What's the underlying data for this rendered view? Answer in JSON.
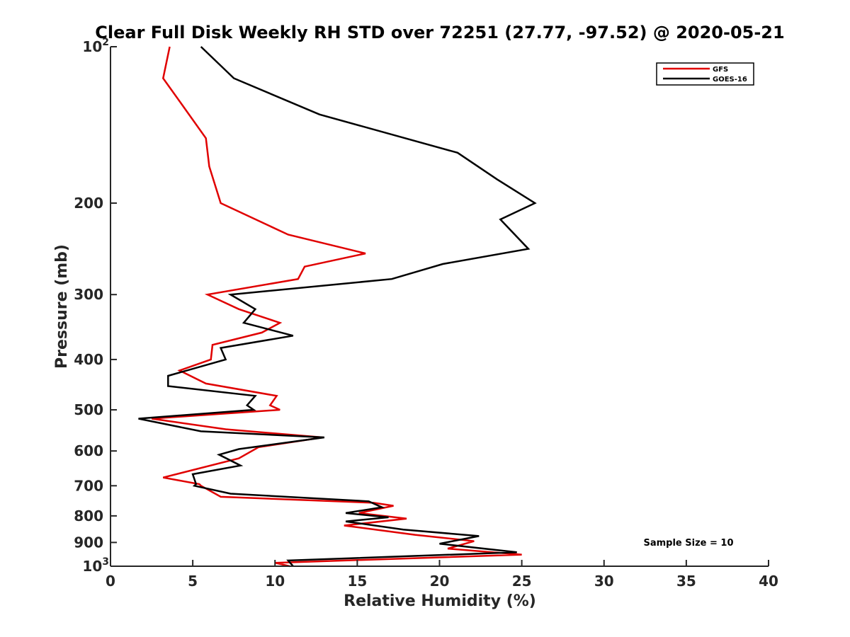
{
  "chart_data": {
    "type": "line",
    "title": "Clear Full Disk Weekly RH STD over 72251 (27.77, -97.52) @ 2020-05-21",
    "xlabel": "Relative Humidity (%)",
    "ylabel": "Pressure (mb)",
    "xlim": [
      0,
      40
    ],
    "ylim": [
      1000,
      100
    ],
    "y_scale": "log",
    "y_reversed": true,
    "x_ticks": [
      "0",
      "5",
      "10",
      "15",
      "20",
      "25",
      "30",
      "35",
      "40"
    ],
    "y_ticks": [
      {
        "value": 100,
        "base": "10",
        "exp": "2"
      },
      {
        "value": 200,
        "label": "200"
      },
      {
        "value": 300,
        "label": "300"
      },
      {
        "value": 400,
        "label": "400"
      },
      {
        "value": 500,
        "label": "500"
      },
      {
        "value": 600,
        "label": "600"
      },
      {
        "value": 700,
        "label": "700"
      },
      {
        "value": 800,
        "label": "800"
      },
      {
        "value": 900,
        "label": "900"
      },
      {
        "value": 1000,
        "base": "10",
        "exp": "3"
      }
    ],
    "grid": false,
    "legend_position": "top-right",
    "annotation": "Sample Size = 10",
    "series": [
      {
        "name": "GFS",
        "color": "#e00000",
        "points": [
          [
            3.6,
            100
          ],
          [
            3.2,
            115
          ],
          [
            4.4,
            130
          ],
          [
            5.8,
            150
          ],
          [
            6.0,
            170
          ],
          [
            6.7,
            200
          ],
          [
            10.8,
            230
          ],
          [
            15.5,
            250
          ],
          [
            11.8,
            265
          ],
          [
            11.4,
            280
          ],
          [
            5.9,
            300
          ],
          [
            7.8,
            320
          ],
          [
            10.3,
            340
          ],
          [
            9.2,
            355
          ],
          [
            6.2,
            375
          ],
          [
            6.1,
            400
          ],
          [
            4.2,
            420
          ],
          [
            5.8,
            445
          ],
          [
            10.1,
            470
          ],
          [
            9.7,
            490
          ],
          [
            10.3,
            500
          ],
          [
            2.5,
            520
          ],
          [
            7.0,
            545
          ],
          [
            12.9,
            565
          ],
          [
            9.0,
            590
          ],
          [
            7.8,
            620
          ],
          [
            3.2,
            675
          ],
          [
            5.4,
            695
          ],
          [
            5.5,
            700
          ],
          [
            6.7,
            735
          ],
          [
            16.0,
            755
          ],
          [
            17.2,
            765
          ],
          [
            15.1,
            790
          ],
          [
            18.0,
            810
          ],
          [
            14.2,
            835
          ],
          [
            18.5,
            870
          ],
          [
            22.1,
            895
          ],
          [
            20.5,
            925
          ],
          [
            25.0,
            950
          ],
          [
            10.0,
            985
          ],
          [
            10.9,
            1000
          ]
        ]
      },
      {
        "name": "GOES-16",
        "color": "#000000",
        "points": [
          [
            5.5,
            100
          ],
          [
            7.5,
            115
          ],
          [
            12.7,
            135
          ],
          [
            21.1,
            160
          ],
          [
            23.5,
            180
          ],
          [
            25.8,
            200
          ],
          [
            23.7,
            215
          ],
          [
            25.4,
            245
          ],
          [
            20.2,
            262
          ],
          [
            17.1,
            280
          ],
          [
            7.3,
            300
          ],
          [
            8.8,
            320
          ],
          [
            8.1,
            340
          ],
          [
            11.1,
            360
          ],
          [
            6.7,
            380
          ],
          [
            7.0,
            400
          ],
          [
            3.5,
            430
          ],
          [
            3.5,
            450
          ],
          [
            8.8,
            470
          ],
          [
            8.3,
            490
          ],
          [
            8.7,
            500
          ],
          [
            1.7,
            520
          ],
          [
            5.5,
            550
          ],
          [
            13.0,
            565
          ],
          [
            7.8,
            595
          ],
          [
            6.6,
            610
          ],
          [
            7.9,
            640
          ],
          [
            5.0,
            665
          ],
          [
            5.2,
            695
          ],
          [
            5.1,
            700
          ],
          [
            7.3,
            725
          ],
          [
            15.7,
            750
          ],
          [
            16.5,
            770
          ],
          [
            14.3,
            790
          ],
          [
            16.9,
            805
          ],
          [
            14.3,
            820
          ],
          [
            17.8,
            850
          ],
          [
            22.4,
            875
          ],
          [
            20.0,
            905
          ],
          [
            24.7,
            940
          ],
          [
            10.8,
            975
          ],
          [
            11.1,
            1000
          ]
        ]
      }
    ]
  }
}
